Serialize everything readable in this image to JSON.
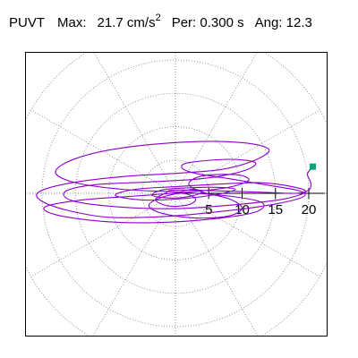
{
  "header": {
    "label": "PUVT",
    "max_label": "Max:",
    "max_value": "21.7",
    "max_unit_base": "cm/s",
    "max_unit_exp": "2",
    "per_label": "Per:",
    "per_value": "0.300 s",
    "ang_label": "Ang:",
    "ang_value": "12.3"
  },
  "chart_data": {
    "type": "polar-hodograph",
    "title": "PUVT",
    "max": 21.7,
    "max_unit": "cm/s²",
    "period_s": 0.3,
    "angle": 12.3,
    "r_ticks": [
      5,
      10,
      15,
      20
    ],
    "r_tick_labels": [
      "5",
      "10",
      "15",
      "20"
    ],
    "grid_radii": [
      5,
      10,
      15,
      20,
      25
    ],
    "grid_spokes_deg": [
      0,
      30,
      60,
      90,
      120,
      150,
      180,
      210,
      240,
      270,
      300,
      330
    ],
    "grid": "dotted",
    "trace_color": "#8b00c9",
    "marker_color": "#00a57a",
    "trace": [
      [
        0.0,
        0.0
      ],
      [
        2.5,
        0.6
      ],
      [
        4.0,
        0.2
      ],
      [
        2.0,
        -0.5
      ],
      [
        -1.0,
        -0.7
      ],
      [
        -3.5,
        -0.3
      ],
      [
        -2.0,
        0.5
      ],
      [
        1.5,
        0.8
      ],
      [
        6.0,
        0.9
      ],
      [
        9.0,
        0.6
      ],
      [
        6.0,
        -0.2
      ],
      [
        1.0,
        -0.8
      ],
      [
        -5.0,
        -1.0
      ],
      [
        -9.0,
        -0.3
      ],
      [
        -6.0,
        0.6
      ],
      [
        0.0,
        1.0
      ],
      [
        7.0,
        1.4
      ],
      [
        12.5,
        1.6
      ],
      [
        17.5,
        1.0
      ],
      [
        19.5,
        0.2
      ],
      [
        16.0,
        -0.9
      ],
      [
        9.0,
        -1.7
      ],
      [
        0.0,
        -2.3
      ],
      [
        -9.0,
        -2.0
      ],
      [
        -15.5,
        -1.1
      ],
      [
        -16.5,
        0.3
      ],
      [
        -12.0,
        1.3
      ],
      [
        -4.0,
        1.7
      ],
      [
        4.0,
        2.2
      ],
      [
        10.0,
        3.3
      ],
      [
        12.0,
        4.6
      ],
      [
        8.0,
        5.1
      ],
      [
        2.0,
        4.6
      ],
      [
        1.0,
        3.8
      ],
      [
        3.0,
        3.0
      ],
      [
        8.0,
        2.2
      ],
      [
        14.0,
        1.2
      ],
      [
        18.5,
        0.4
      ],
      [
        19.2,
        -0.5
      ],
      [
        15.0,
        -1.6
      ],
      [
        7.0,
        -2.7
      ],
      [
        -2.0,
        -3.5
      ],
      [
        -10.0,
        -3.6
      ],
      [
        -16.0,
        -2.6
      ],
      [
        -20.0,
        -1.2
      ],
      [
        -20.5,
        0.2
      ],
      [
        -16.0,
        1.5
      ],
      [
        -8.0,
        2.5
      ],
      [
        0.0,
        3.0
      ],
      [
        7.0,
        3.6
      ],
      [
        12.0,
        5.0
      ],
      [
        14.0,
        6.6
      ],
      [
        10.0,
        7.6
      ],
      [
        2.0,
        7.7
      ],
      [
        -8.0,
        6.8
      ],
      [
        -15.0,
        5.2
      ],
      [
        -18.0,
        3.2
      ],
      [
        -15.0,
        1.6
      ],
      [
        -8.0,
        0.6
      ],
      [
        0.0,
        0.2
      ],
      [
        8.0,
        -0.4
      ],
      [
        13.0,
        -1.4
      ],
      [
        12.0,
        -2.8
      ],
      [
        6.0,
        -3.8
      ],
      [
        -3.0,
        -4.4
      ],
      [
        -11.0,
        -4.2
      ],
      [
        -18.0,
        -3.2
      ],
      [
        -19.5,
        -2.0
      ],
      [
        -14.0,
        -1.0
      ],
      [
        -6.0,
        -0.4
      ],
      [
        2.0,
        0.2
      ],
      [
        8.0,
        0.9
      ],
      [
        11.0,
        2.0
      ],
      [
        9.0,
        2.8
      ],
      [
        4.0,
        2.6
      ],
      [
        2.0,
        1.4
      ],
      [
        4.0,
        0.2
      ],
      [
        8.0,
        -0.8
      ],
      [
        10.0,
        -2.2
      ],
      [
        8.0,
        -3.4
      ],
      [
        3.0,
        -3.7
      ],
      [
        -2.0,
        -3.0
      ],
      [
        -4.0,
        -1.8
      ],
      [
        -2.0,
        -0.6
      ],
      [
        1.0,
        0.0
      ],
      [
        3.0,
        -0.8
      ],
      [
        2.0,
        -1.7
      ],
      [
        -1.0,
        -1.9
      ],
      [
        -3.0,
        -1.0
      ],
      [
        -1.5,
        0.0
      ],
      [
        0.5,
        0.5
      ],
      [
        12.0,
        0.2
      ],
      [
        18.0,
        0.0
      ],
      [
        20.0,
        0.5
      ],
      [
        20.3,
        1.6
      ],
      [
        19.8,
        2.9
      ],
      [
        20.6,
        4.0
      ]
    ],
    "marker": [
      20.6,
      4.0
    ]
  }
}
